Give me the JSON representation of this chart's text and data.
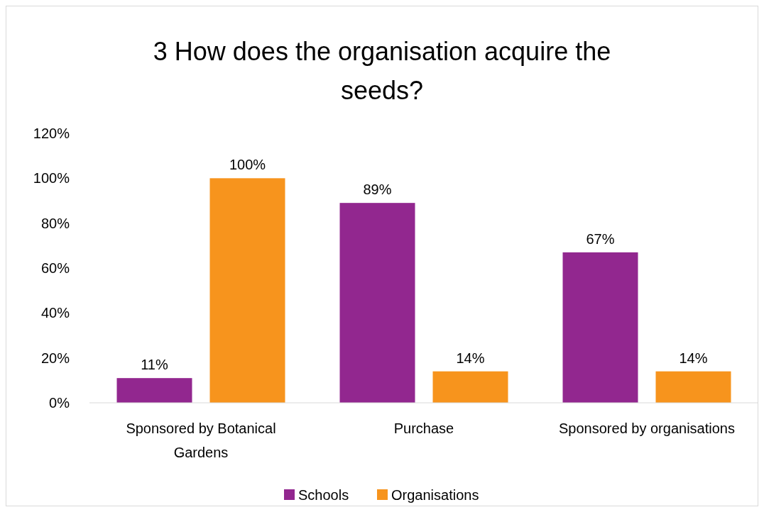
{
  "chart_data": {
    "type": "bar",
    "title": "3 How does the organisation acquire the seeds?",
    "categories": [
      "Sponsored by Botanical Gardens",
      "Purchase",
      "Sponsored by organisations"
    ],
    "series": [
      {
        "name": "Schools",
        "color": "#92278f",
        "values": [
          11,
          89,
          67
        ],
        "value_labels": [
          "11%",
          "89%",
          "67%"
        ]
      },
      {
        "name": "Organisations",
        "color": "#f7941d",
        "values": [
          100,
          14,
          14
        ],
        "value_labels": [
          "100%",
          "14%",
          "14%"
        ]
      }
    ],
    "ylim": [
      0,
      120
    ],
    "yticks": [
      {
        "value": 0,
        "label": "0%"
      },
      {
        "value": 20,
        "label": "20%"
      },
      {
        "value": 40,
        "label": "40%"
      },
      {
        "value": 60,
        "label": "60%"
      },
      {
        "value": 80,
        "label": "80%"
      },
      {
        "value": 100,
        "label": "100%"
      },
      {
        "value": 120,
        "label": "120%"
      }
    ],
    "grid": false,
    "legend": "bottom"
  }
}
